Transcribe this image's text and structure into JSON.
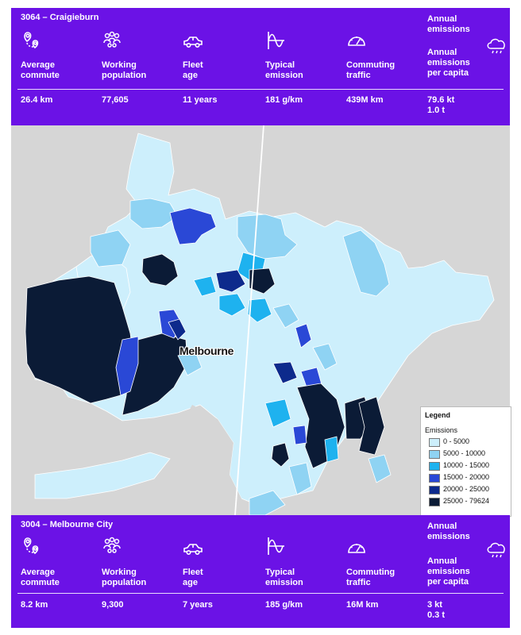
{
  "colors": {
    "panel": "#6b12e6",
    "water": "#d6d6d6",
    "class_1": "#cdeffc",
    "class_2": "#8fd3f3",
    "class_3": "#1eb2ef",
    "class_4": "#2a48d6",
    "class_5": "#0d2a8c",
    "class_6": "#0b1b36"
  },
  "top_panel": {
    "title": "3064 – Craigieburn",
    "stats": [
      {
        "icon": "location-pins-icon",
        "label": "Average\ncommute",
        "value": "26.4 km"
      },
      {
        "icon": "people-group-icon",
        "label": "Working\npopulation",
        "value": "77,605"
      },
      {
        "icon": "car-icon",
        "label": "Fleet\nage",
        "value": "11 years"
      },
      {
        "icon": "emission-wave-icon",
        "label": "Typical\nemission",
        "value": "181 g/km"
      },
      {
        "icon": "speedometer-icon",
        "label": "Commuting\ntraffic",
        "value": "439M km"
      }
    ],
    "annual_emissions_label": "Annual\nemissions",
    "per_capita_label": "Annual\nemissions\nper capita",
    "emissions_value": "79.6 kt\n1.0 t",
    "cloud_icon": "cloud-icon"
  },
  "bottom_panel": {
    "title": "3004 – Melbourne City",
    "stats": [
      {
        "icon": "location-pins-icon",
        "label": "Average\ncommute",
        "value": "8.2  km"
      },
      {
        "icon": "people-group-icon",
        "label": "Working\npopulation",
        "value": "9,300"
      },
      {
        "icon": "car-icon",
        "label": "Fleet\nage",
        "value": "7 years"
      },
      {
        "icon": "emission-wave-icon",
        "label": "Typical\nemission",
        "value": "185 g/km"
      },
      {
        "icon": "speedometer-icon",
        "label": "Commuting\ntraffic",
        "value": "16M km"
      }
    ],
    "annual_emissions_label": "Annual\nemissions",
    "per_capita_label": "Annual\nemissions\nper capita",
    "emissions_value": "3 kt\n0.3 t",
    "cloud_icon": "cloud-icon"
  },
  "map": {
    "city_label": "Melbourne",
    "legend": {
      "title": "Legend",
      "subtitle": "Emissions",
      "classes": [
        {
          "label": "0 - 5000",
          "color": "#cdeffc"
        },
        {
          "label": "5000 - 10000",
          "color": "#8fd3f3"
        },
        {
          "label": "10000 - 15000",
          "color": "#1eb2ef"
        },
        {
          "label": "15000 - 20000",
          "color": "#2a48d6"
        },
        {
          "label": "20000 - 25000",
          "color": "#0d2a8c"
        },
        {
          "label": "25000 - 79624",
          "color": "#0b1b36"
        }
      ]
    }
  }
}
